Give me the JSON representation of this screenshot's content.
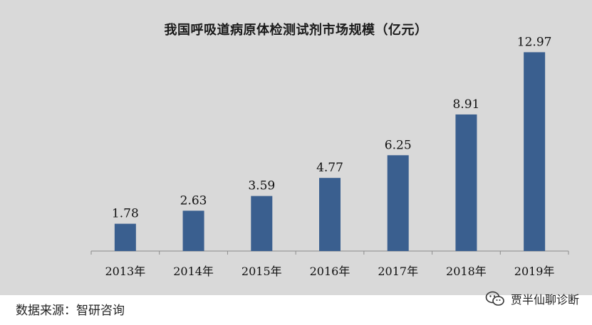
{
  "chart_data": {
    "type": "bar",
    "title": "我国呼吸道病原体检测试剂市场规模（亿元）",
    "categories": [
      "2013年",
      "2014年",
      "2015年",
      "2016年",
      "2017年",
      "2018年",
      "2019年"
    ],
    "values": [
      1.78,
      2.63,
      3.59,
      4.77,
      6.25,
      8.91,
      12.97
    ],
    "value_labels": [
      "1.78",
      "2.63",
      "3.59",
      "4.77",
      "6.25",
      "8.91",
      "12.97"
    ],
    "ylim": [
      0,
      13.5
    ],
    "bar_color": "#3a5f8f",
    "grid": false,
    "legend": "none"
  },
  "footer": {
    "source": "数据来源：智研咨询",
    "watermark": "贾半仙聊诊断",
    "watermark_icon": "wechat-icon"
  },
  "colors": {
    "panel_background": "#d9d9d9",
    "bar": "#3a5f8f",
    "axis": "#8c8c8c"
  }
}
